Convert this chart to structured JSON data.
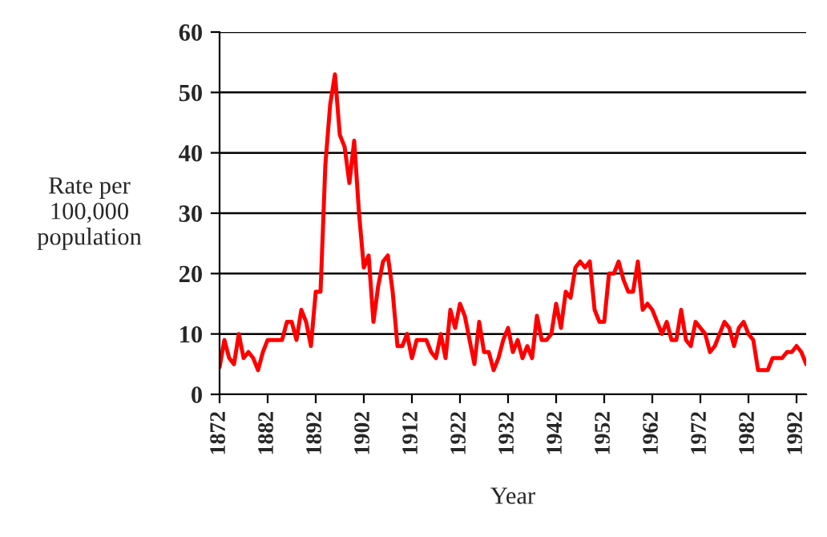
{
  "chart_data": {
    "type": "line",
    "xlabel": "Year",
    "ylabel": "Rate per\n100,000\npopulation",
    "x": [
      1872,
      1873,
      1874,
      1875,
      1876,
      1877,
      1878,
      1879,
      1880,
      1881,
      1882,
      1883,
      1884,
      1885,
      1886,
      1887,
      1888,
      1889,
      1890,
      1891,
      1892,
      1893,
      1894,
      1895,
      1896,
      1897,
      1898,
      1899,
      1900,
      1901,
      1902,
      1903,
      1904,
      1905,
      1906,
      1907,
      1908,
      1909,
      1910,
      1911,
      1912,
      1913,
      1914,
      1915,
      1916,
      1917,
      1918,
      1919,
      1920,
      1921,
      1922,
      1923,
      1924,
      1925,
      1926,
      1927,
      1928,
      1929,
      1930,
      1931,
      1932,
      1933,
      1934,
      1935,
      1936,
      1937,
      1938,
      1939,
      1940,
      1941,
      1942,
      1943,
      1944,
      1945,
      1946,
      1947,
      1948,
      1949,
      1950,
      1951,
      1952,
      1953,
      1954,
      1955,
      1956,
      1957,
      1958,
      1959,
      1960,
      1961,
      1962,
      1963,
      1964,
      1965,
      1966,
      1967,
      1968,
      1969,
      1970,
      1971,
      1972,
      1973,
      1974,
      1975,
      1976,
      1977,
      1978,
      1979,
      1980,
      1981,
      1982,
      1983,
      1984,
      1985,
      1986,
      1987,
      1988,
      1989,
      1990,
      1991,
      1992,
      1993,
      1994
    ],
    "series": [
      {
        "color": "#ff0000",
        "values": [
          4.5,
          9,
          6,
          5,
          10,
          6,
          7,
          6,
          4,
          7,
          9,
          9,
          9,
          9,
          12,
          12,
          9,
          14,
          12,
          8,
          17,
          17,
          38,
          48,
          53,
          43,
          41,
          35,
          42,
          30,
          21,
          23,
          12,
          18,
          22,
          23,
          17,
          8,
          8,
          10,
          6,
          9,
          9,
          9,
          7,
          6,
          10,
          6,
          14,
          11,
          15,
          13,
          9,
          5,
          12,
          7,
          7,
          4,
          6,
          9,
          11,
          7,
          9,
          6,
          8,
          6,
          13,
          9,
          9,
          10,
          15,
          11,
          17,
          16,
          21,
          22,
          21,
          22,
          14,
          12,
          12,
          20,
          20,
          22,
          19,
          17,
          17,
          22,
          14,
          15,
          14,
          12,
          10,
          12,
          9,
          9,
          14,
          9,
          8,
          12,
          11,
          10,
          7,
          8,
          10,
          12,
          11,
          8,
          11,
          12,
          10,
          9,
          4,
          4,
          4,
          6,
          6,
          6,
          7,
          7,
          8,
          7,
          5
        ]
      }
    ],
    "xlim": [
      1872,
      1994
    ],
    "xticks": [
      1872,
      1882,
      1892,
      1902,
      1912,
      1922,
      1932,
      1942,
      1952,
      1962,
      1972,
      1982,
      1992
    ],
    "ylim": [
      0,
      60
    ],
    "yticks": [
      0,
      10,
      20,
      30,
      40,
      50,
      60
    ],
    "grid": "y",
    "line_style": "solid",
    "marker": "none"
  }
}
